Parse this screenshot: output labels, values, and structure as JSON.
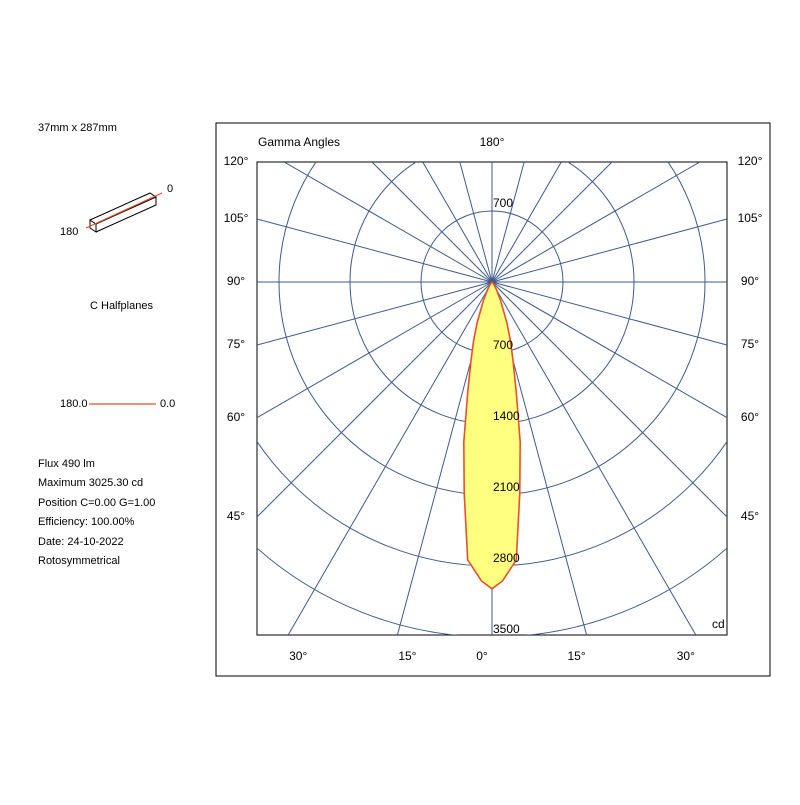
{
  "info": {
    "size": "37mm x 287mm",
    "c0": "0",
    "c180": "180",
    "halfplanes": "C Halfplanes",
    "legend_left": "180.0",
    "legend_right": "0.0",
    "lines": [
      "Flux 490  lm",
      "Maximum 3025.30  cd",
      "Position C=0.00 G=1.00",
      "Efficiency: 100.00%",
      "Date: 24-10-2022",
      "Rotosymmetrical"
    ]
  },
  "chart_data": {
    "type": "polar",
    "title": "Gamma Angles",
    "unit": "cd",
    "rlim": [
      0,
      3500
    ],
    "rticks": [
      700,
      1400,
      2100,
      2800,
      3500
    ],
    "gamma_ticks": [
      {
        "value": 0,
        "label": "0°"
      },
      {
        "value": 15,
        "label": "15°"
      },
      {
        "value": 30,
        "label": "30°"
      },
      {
        "value": 45,
        "label": "45°"
      },
      {
        "value": 60,
        "label": "60°"
      },
      {
        "value": 75,
        "label": "75°"
      },
      {
        "value": 90,
        "label": "90°"
      },
      {
        "value": 105,
        "label": "105°"
      },
      {
        "value": 120,
        "label": "120°"
      },
      {
        "value": 180,
        "label": "180°"
      }
    ],
    "gamma_grid": [
      135,
      150,
      165
    ],
    "grid_color": "#3d5a8e",
    "series": [
      {
        "color": "#e8502a",
        "fill": "#ffff80",
        "x": [
          0,
          2,
          5,
          7.5,
          10,
          12.5,
          15,
          17.5,
          20,
          25,
          30,
          35,
          40,
          45,
          50
        ],
        "values": [
          3025,
          2950,
          2750,
          2100,
          1600,
          1100,
          800,
          600,
          430,
          200,
          90,
          40,
          15,
          5,
          0
        ]
      }
    ]
  }
}
